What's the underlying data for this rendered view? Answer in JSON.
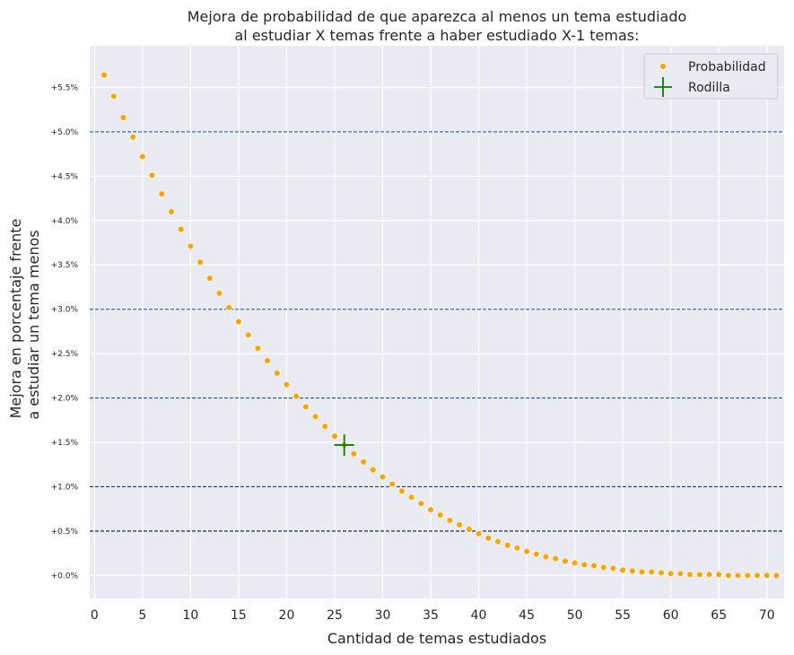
{
  "chart_data": {
    "type": "scatter",
    "title_lines": [
      "Mejora de probabilidad de que aparezca al menos un tema estudiado",
      "al estudiar X temas frente a haber estudiado X-1 temas:"
    ],
    "xlabel": "Cantidad de temas estudiados",
    "ylabel_lines": [
      "Mejora en porcentaje frente",
      "a estudiar un tema menos"
    ],
    "xlim": [
      -0.5,
      71.8
    ],
    "ylim": [
      -0.0026,
      0.0597
    ],
    "x_ticks": [
      0,
      5,
      10,
      15,
      20,
      25,
      30,
      35,
      40,
      45,
      50,
      55,
      60,
      65,
      70
    ],
    "x_tick_labels": [
      "0",
      "5",
      "10",
      "15",
      "20",
      "25",
      "30",
      "35",
      "40",
      "45",
      "50",
      "55",
      "60",
      "65",
      "70"
    ],
    "y_ticks": [
      0.0,
      0.005,
      0.01,
      0.015,
      0.02,
      0.025,
      0.03,
      0.035,
      0.04,
      0.045,
      0.05,
      0.055
    ],
    "y_tick_labels": [
      "+0.0%",
      "+0.5%",
      "+1.0%",
      "+1.5%",
      "+2.0%",
      "+2.5%",
      "+3.0%",
      "+3.5%",
      "+4.0%",
      "+4.5%",
      "+5.0%",
      "+5.5%"
    ],
    "grid": true,
    "legend_position": "top-right",
    "reference_lines": [
      {
        "y": 0.05,
        "color": "#2f6fb0"
      },
      {
        "y": 0.03,
        "color": "#275f9e"
      },
      {
        "y": 0.02,
        "color": "#1f4f8c"
      },
      {
        "y": 0.01,
        "color": "#163f78"
      },
      {
        "y": 0.005,
        "color": "#0e2f62"
      }
    ],
    "series": [
      {
        "name": "Probabilidad",
        "color": "#ffa500",
        "marker": "circle",
        "x": [
          1,
          2,
          3,
          4,
          5,
          6,
          7,
          8,
          9,
          10,
          11,
          12,
          13,
          14,
          15,
          16,
          17,
          18,
          19,
          20,
          21,
          22,
          23,
          24,
          25,
          26,
          27,
          28,
          29,
          30,
          31,
          32,
          33,
          34,
          35,
          36,
          37,
          38,
          39,
          40,
          41,
          42,
          43,
          44,
          45,
          46,
          47,
          48,
          49,
          50,
          51,
          52,
          53,
          54,
          55,
          56,
          57,
          58,
          59,
          60,
          61,
          62,
          63,
          64,
          65,
          66,
          67,
          68,
          69,
          70,
          71
        ],
        "y": [
          0.0564,
          0.054,
          0.0516,
          0.0494,
          0.0472,
          0.0451,
          0.043,
          0.041,
          0.039,
          0.0371,
          0.0353,
          0.0335,
          0.0318,
          0.0302,
          0.0286,
          0.0271,
          0.0256,
          0.0242,
          0.0228,
          0.0215,
          0.0202,
          0.019,
          0.0179,
          0.0168,
          0.0157,
          0.0147,
          0.0137,
          0.0128,
          0.0119,
          0.0111,
          0.0103,
          0.0095,
          0.0088,
          0.0081,
          0.0074,
          0.0068,
          0.0062,
          0.0057,
          0.0052,
          0.0047,
          0.0042,
          0.0038,
          0.0034,
          0.0031,
          0.0027,
          0.0024,
          0.0021,
          0.0019,
          0.0016,
          0.0014,
          0.0012,
          0.0011,
          0.0009,
          0.0008,
          0.0006,
          0.0005,
          0.0004,
          0.0004,
          0.0003,
          0.0002,
          0.0002,
          0.0001,
          0.0001,
          0.0001,
          0.0001,
          0.0,
          0.0,
          0.0,
          0.0,
          0.0,
          0.0
        ]
      },
      {
        "name": "Rodilla",
        "color": "#008000",
        "marker": "plus",
        "x": [
          26
        ],
        "y": [
          0.0147
        ]
      }
    ]
  }
}
